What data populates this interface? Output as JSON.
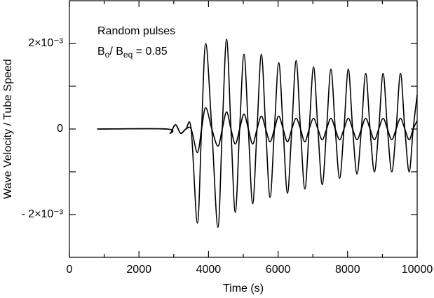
{
  "chart_data": {
    "type": "line",
    "annotation_title": "Random pulses",
    "annotation_ratio": [
      "B",
      "o",
      "/ B",
      "eq",
      " = 0.85"
    ],
    "xlabel": "Time  (s)",
    "ylabel": "Wave Velocity / Tube Speed",
    "xlim": [
      0,
      10000
    ],
    "xticks": [
      0,
      2000,
      4000,
      6000,
      8000,
      10000
    ],
    "xticks_minor": [
      1000,
      3000,
      5000,
      7000,
      9000
    ],
    "ylim": [
      -0.003,
      0.003
    ],
    "yticks": [
      {
        "value": -0.002,
        "label": "- 2×10⁻³"
      },
      0,
      {
        "value": 0.002,
        "label": "2×10⁻³"
      }
    ],
    "yticks_minor": [
      -0.001,
      0.001
    ],
    "x": [
      800,
      2800,
      2900,
      3050,
      3200,
      3350,
      3500,
      3680,
      3800,
      3920,
      4095,
      4270,
      4395,
      4520,
      4645,
      4770,
      4895,
      5020,
      5145,
      5270,
      5395,
      5520,
      5645,
      5770,
      5895,
      6020,
      6145,
      6270,
      6395,
      6520,
      6645,
      6770,
      6895,
      7020,
      7145,
      7270,
      7395,
      7520,
      7645,
      7770,
      7895,
      8020,
      8145,
      8270,
      8395,
      8520,
      8645,
      8770,
      8895,
      9020,
      9145,
      9270,
      9395,
      9520,
      9645,
      9770,
      9885,
      10000
    ],
    "series": [
      {
        "color": "#000000",
        "values": [
          0,
          0,
          -0.0001,
          0.0001,
          -0.0001,
          0,
          0,
          -0.0022,
          0,
          0.002,
          0,
          -0.0023,
          0,
          0.0021,
          0,
          -0.00195,
          0,
          0.00175,
          0,
          -0.00175,
          0,
          0.00175,
          0,
          -0.0016,
          0,
          0.00155,
          0,
          -0.0015,
          0,
          0.0016,
          0,
          -0.0014,
          0,
          0.00145,
          0,
          -0.0013,
          0,
          0.0014,
          0,
          -0.00115,
          0,
          0.0014,
          0,
          -0.00105,
          0,
          0.0013,
          0,
          -0.001,
          0,
          0.0013,
          0,
          -0.001,
          0,
          0.0013,
          0,
          -0.001,
          0,
          0.0008
        ]
      },
      {
        "color": "#000000",
        "values": [
          0,
          0,
          -0.0001,
          0.0001,
          -0.0001,
          0,
          0,
          -0.00055,
          0,
          0.0005,
          0,
          -0.0004,
          0,
          0.0004,
          0,
          -0.00035,
          0,
          0.00035,
          0,
          -0.00035,
          0,
          0.0003,
          0,
          -0.0003,
          0,
          0.0003,
          0,
          -0.0003,
          0,
          0.00025,
          0,
          -0.0003,
          0,
          0.00025,
          0,
          -0.00025,
          0,
          0.00025,
          0,
          -0.00025,
          0,
          0.00025,
          0,
          -0.00025,
          0,
          0.00025,
          0,
          -0.00025,
          0,
          0.00025,
          0,
          -0.00025,
          0,
          0.00025,
          0,
          -0.00025,
          0,
          0.0002
        ]
      }
    ]
  }
}
